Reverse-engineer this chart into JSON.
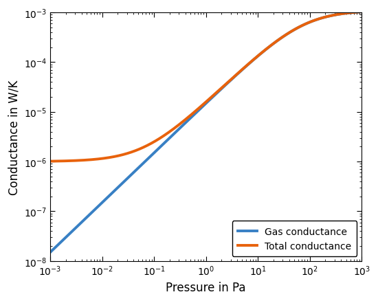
{
  "title": "",
  "xlabel": "Pressure in Pa",
  "ylabel": "Conductance in W/K",
  "xlim_log": [
    -3,
    3
  ],
  "ylim_log": [
    -8,
    -3
  ],
  "gas_color": "#3880c4",
  "total_color": "#e8620c",
  "line_width": 2.8,
  "legend_labels": [
    "Gas conductance",
    "Total conductance"
  ],
  "legend_loc": "lower right",
  "background_color": "#ffffff",
  "solid_conductance": 1e-06,
  "gas_free_molecular_slope": 1e-08,
  "gas_viscous_max": 0.001,
  "p_transition": 0.8
}
